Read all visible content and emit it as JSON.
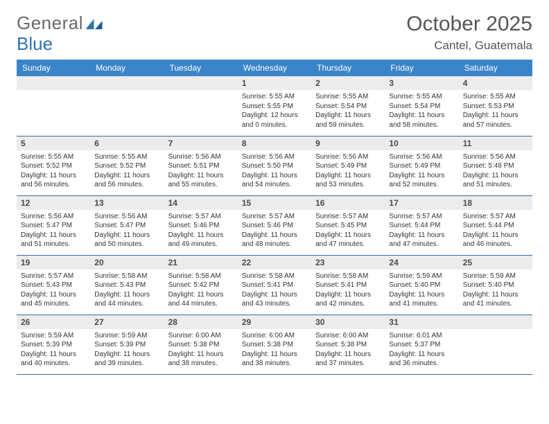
{
  "logo": {
    "text_gray": "General",
    "text_blue": "Blue"
  },
  "header": {
    "month": "October 2025",
    "location": "Cantel, Guatemala"
  },
  "colors": {
    "header_bg": "#3a85c9",
    "header_text": "#ffffff",
    "daynum_bg": "#ececec",
    "row_border": "#3a6a9a",
    "logo_gray": "#6a6a6a",
    "logo_blue": "#2f73b6",
    "title_color": "#555555"
  },
  "weekdays": [
    "Sunday",
    "Monday",
    "Tuesday",
    "Wednesday",
    "Thursday",
    "Friday",
    "Saturday"
  ],
  "weeks": [
    [
      {
        "num": "",
        "sunrise": "",
        "sunset": "",
        "daylight": ""
      },
      {
        "num": "",
        "sunrise": "",
        "sunset": "",
        "daylight": ""
      },
      {
        "num": "",
        "sunrise": "",
        "sunset": "",
        "daylight": ""
      },
      {
        "num": "1",
        "sunrise": "Sunrise: 5:55 AM",
        "sunset": "Sunset: 5:55 PM",
        "daylight": "Daylight: 12 hours and 0 minutes."
      },
      {
        "num": "2",
        "sunrise": "Sunrise: 5:55 AM",
        "sunset": "Sunset: 5:54 PM",
        "daylight": "Daylight: 11 hours and 59 minutes."
      },
      {
        "num": "3",
        "sunrise": "Sunrise: 5:55 AM",
        "sunset": "Sunset: 5:54 PM",
        "daylight": "Daylight: 11 hours and 58 minutes."
      },
      {
        "num": "4",
        "sunrise": "Sunrise: 5:55 AM",
        "sunset": "Sunset: 5:53 PM",
        "daylight": "Daylight: 11 hours and 57 minutes."
      }
    ],
    [
      {
        "num": "5",
        "sunrise": "Sunrise: 5:55 AM",
        "sunset": "Sunset: 5:52 PM",
        "daylight": "Daylight: 11 hours and 56 minutes."
      },
      {
        "num": "6",
        "sunrise": "Sunrise: 5:55 AM",
        "sunset": "Sunset: 5:52 PM",
        "daylight": "Daylight: 11 hours and 56 minutes."
      },
      {
        "num": "7",
        "sunrise": "Sunrise: 5:56 AM",
        "sunset": "Sunset: 5:51 PM",
        "daylight": "Daylight: 11 hours and 55 minutes."
      },
      {
        "num": "8",
        "sunrise": "Sunrise: 5:56 AM",
        "sunset": "Sunset: 5:50 PM",
        "daylight": "Daylight: 11 hours and 54 minutes."
      },
      {
        "num": "9",
        "sunrise": "Sunrise: 5:56 AM",
        "sunset": "Sunset: 5:49 PM",
        "daylight": "Daylight: 11 hours and 53 minutes."
      },
      {
        "num": "10",
        "sunrise": "Sunrise: 5:56 AM",
        "sunset": "Sunset: 5:49 PM",
        "daylight": "Daylight: 11 hours and 52 minutes."
      },
      {
        "num": "11",
        "sunrise": "Sunrise: 5:56 AM",
        "sunset": "Sunset: 5:48 PM",
        "daylight": "Daylight: 11 hours and 51 minutes."
      }
    ],
    [
      {
        "num": "12",
        "sunrise": "Sunrise: 5:56 AM",
        "sunset": "Sunset: 5:47 PM",
        "daylight": "Daylight: 11 hours and 51 minutes."
      },
      {
        "num": "13",
        "sunrise": "Sunrise: 5:56 AM",
        "sunset": "Sunset: 5:47 PM",
        "daylight": "Daylight: 11 hours and 50 minutes."
      },
      {
        "num": "14",
        "sunrise": "Sunrise: 5:57 AM",
        "sunset": "Sunset: 5:46 PM",
        "daylight": "Daylight: 11 hours and 49 minutes."
      },
      {
        "num": "15",
        "sunrise": "Sunrise: 5:57 AM",
        "sunset": "Sunset: 5:46 PM",
        "daylight": "Daylight: 11 hours and 48 minutes."
      },
      {
        "num": "16",
        "sunrise": "Sunrise: 5:57 AM",
        "sunset": "Sunset: 5:45 PM",
        "daylight": "Daylight: 11 hours and 47 minutes."
      },
      {
        "num": "17",
        "sunrise": "Sunrise: 5:57 AM",
        "sunset": "Sunset: 5:44 PM",
        "daylight": "Daylight: 11 hours and 47 minutes."
      },
      {
        "num": "18",
        "sunrise": "Sunrise: 5:57 AM",
        "sunset": "Sunset: 5:44 PM",
        "daylight": "Daylight: 11 hours and 46 minutes."
      }
    ],
    [
      {
        "num": "19",
        "sunrise": "Sunrise: 5:57 AM",
        "sunset": "Sunset: 5:43 PM",
        "daylight": "Daylight: 11 hours and 45 minutes."
      },
      {
        "num": "20",
        "sunrise": "Sunrise: 5:58 AM",
        "sunset": "Sunset: 5:43 PM",
        "daylight": "Daylight: 11 hours and 44 minutes."
      },
      {
        "num": "21",
        "sunrise": "Sunrise: 5:58 AM",
        "sunset": "Sunset: 5:42 PM",
        "daylight": "Daylight: 11 hours and 44 minutes."
      },
      {
        "num": "22",
        "sunrise": "Sunrise: 5:58 AM",
        "sunset": "Sunset: 5:41 PM",
        "daylight": "Daylight: 11 hours and 43 minutes."
      },
      {
        "num": "23",
        "sunrise": "Sunrise: 5:58 AM",
        "sunset": "Sunset: 5:41 PM",
        "daylight": "Daylight: 11 hours and 42 minutes."
      },
      {
        "num": "24",
        "sunrise": "Sunrise: 5:59 AM",
        "sunset": "Sunset: 5:40 PM",
        "daylight": "Daylight: 11 hours and 41 minutes."
      },
      {
        "num": "25",
        "sunrise": "Sunrise: 5:59 AM",
        "sunset": "Sunset: 5:40 PM",
        "daylight": "Daylight: 11 hours and 41 minutes."
      }
    ],
    [
      {
        "num": "26",
        "sunrise": "Sunrise: 5:59 AM",
        "sunset": "Sunset: 5:39 PM",
        "daylight": "Daylight: 11 hours and 40 minutes."
      },
      {
        "num": "27",
        "sunrise": "Sunrise: 5:59 AM",
        "sunset": "Sunset: 5:39 PM",
        "daylight": "Daylight: 11 hours and 39 minutes."
      },
      {
        "num": "28",
        "sunrise": "Sunrise: 6:00 AM",
        "sunset": "Sunset: 5:38 PM",
        "daylight": "Daylight: 11 hours and 38 minutes."
      },
      {
        "num": "29",
        "sunrise": "Sunrise: 6:00 AM",
        "sunset": "Sunset: 5:38 PM",
        "daylight": "Daylight: 11 hours and 38 minutes."
      },
      {
        "num": "30",
        "sunrise": "Sunrise: 6:00 AM",
        "sunset": "Sunset: 5:38 PM",
        "daylight": "Daylight: 11 hours and 37 minutes."
      },
      {
        "num": "31",
        "sunrise": "Sunrise: 6:01 AM",
        "sunset": "Sunset: 5:37 PM",
        "daylight": "Daylight: 11 hours and 36 minutes."
      },
      {
        "num": "",
        "sunrise": "",
        "sunset": "",
        "daylight": ""
      }
    ]
  ]
}
